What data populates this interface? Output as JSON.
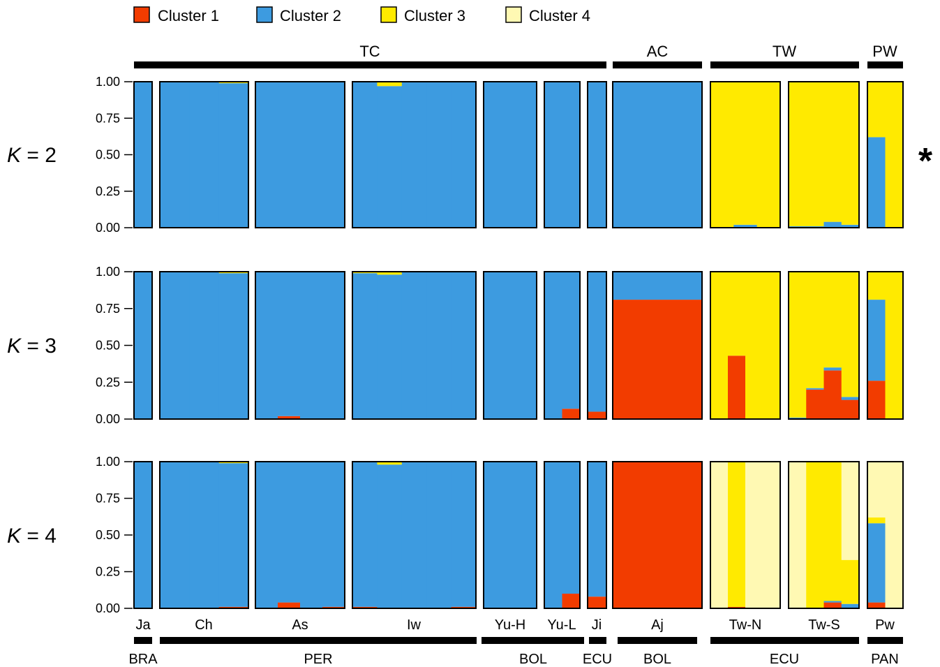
{
  "colors": {
    "cluster1": "#F23C00",
    "cluster2": "#3D9BE0",
    "cluster3": "#FFEA00",
    "cluster4": "#FFF9B3",
    "border": "#000000"
  },
  "legend": [
    "Cluster 1",
    "Cluster 2",
    "Cluster 3",
    "Cluster 4"
  ],
  "top_groups": [
    "TC",
    "AC",
    "TW",
    "PW"
  ],
  "populations": [
    "Ja",
    "Ch",
    "As",
    "Iw",
    "Yu-H",
    "Yu-L",
    "Ji",
    "Aj",
    "Tw-N",
    "Tw-S",
    "Pw"
  ],
  "countries": [
    "BRA",
    "PER",
    "BOL",
    "ECU",
    "BOL",
    "ECU",
    "PAN"
  ],
  "ticks": [
    "0.00",
    "0.25",
    "0.50",
    "0.75",
    "1.00"
  ],
  "k_label_letter": "K",
  "asterisk": "*",
  "chart_data": {
    "type": "bar",
    "subtype": "stacked-admixture",
    "ylim": [
      0,
      1
    ],
    "panels": [
      {
        "K": 2,
        "label_suffix": " = 2",
        "best": true,
        "populations": {
          "Ja": [
            [
              0,
              1,
              0,
              0
            ]
          ],
          "Ch": [
            [
              0,
              1,
              0,
              0
            ],
            [
              0,
              1,
              0,
              0
            ],
            [
              0,
              0.99,
              0.01,
              0
            ]
          ],
          "As": [
            [
              0,
              1,
              0,
              0
            ]
          ],
          "Iw": [
            [
              0,
              1,
              0,
              0
            ],
            [
              0,
              0.97,
              0.03,
              0
            ],
            [
              0,
              1,
              0,
              0
            ],
            [
              0,
              1,
              0,
              0
            ],
            [
              0,
              1,
              0,
              0
            ]
          ],
          "Yu-H": [
            [
              0,
              1,
              0,
              0
            ]
          ],
          "Yu-L": [
            [
              0,
              1,
              0,
              0
            ]
          ],
          "Ji": [
            [
              0,
              1,
              0,
              0
            ]
          ],
          "Aj": [
            [
              0,
              1,
              0,
              0
            ]
          ],
          "Tw-N": [
            [
              0,
              0,
              1,
              0
            ],
            [
              0,
              0.02,
              0.98,
              0
            ],
            [
              0,
              0,
              1,
              0
            ]
          ],
          "Tw-S": [
            [
              0,
              0.01,
              0.99,
              0
            ],
            [
              0,
              0.01,
              0.99,
              0
            ],
            [
              0,
              0.04,
              0.96,
              0
            ],
            [
              0,
              0.02,
              0.98,
              0
            ]
          ],
          "Pw": [
            [
              0,
              0.62,
              0.38,
              0
            ],
            [
              0,
              0,
              1,
              0
            ]
          ]
        }
      },
      {
        "K": 3,
        "label_suffix": " = 3",
        "best": false,
        "populations": {
          "Ja": [
            [
              0,
              1,
              0,
              0
            ]
          ],
          "Ch": [
            [
              0,
              1,
              0,
              0
            ],
            [
              0,
              1,
              0,
              0
            ],
            [
              0,
              0.99,
              0.01,
              0
            ]
          ],
          "As": [
            [
              0,
              1,
              0,
              0
            ],
            [
              0.02,
              0.98,
              0,
              0
            ],
            [
              0,
              1,
              0,
              0
            ],
            [
              0,
              1,
              0,
              0
            ]
          ],
          "Iw": [
            [
              0,
              0.99,
              0.01,
              0
            ],
            [
              0,
              0.98,
              0.02,
              0
            ],
            [
              0,
              1,
              0,
              0
            ],
            [
              0,
              1,
              0,
              0
            ],
            [
              0,
              1,
              0,
              0
            ]
          ],
          "Yu-H": [
            [
              0,
              1,
              0,
              0
            ]
          ],
          "Yu-L": [
            [
              0,
              1,
              0,
              0
            ],
            [
              0.07,
              0.93,
              0,
              0
            ]
          ],
          "Ji": [
            [
              0.05,
              0.95,
              0,
              0
            ]
          ],
          "Aj": [
            [
              0.81,
              0.19,
              0,
              0
            ]
          ],
          "Tw-N": [
            [
              0,
              0,
              1,
              0
            ],
            [
              0.43,
              0,
              0.57,
              0
            ],
            [
              0,
              0,
              1,
              0
            ],
            [
              0,
              0,
              1,
              0
            ]
          ],
          "Tw-S": [
            [
              0,
              0.01,
              0.99,
              0
            ],
            [
              0.2,
              0.01,
              0.79,
              0
            ],
            [
              0.33,
              0.02,
              0.65,
              0
            ],
            [
              0.13,
              0.02,
              0.85,
              0
            ]
          ],
          "Pw": [
            [
              0.26,
              0.55,
              0.19,
              0
            ],
            [
              0,
              0,
              1,
              0
            ]
          ]
        }
      },
      {
        "K": 4,
        "label_suffix": " = 4",
        "best": false,
        "populations": {
          "Ja": [
            [
              0,
              1,
              0,
              0
            ]
          ],
          "Ch": [
            [
              0,
              1,
              0,
              0
            ],
            [
              0,
              1,
              0,
              0
            ],
            [
              0.01,
              0.98,
              0.01,
              0
            ]
          ],
          "As": [
            [
              0,
              1,
              0,
              0
            ],
            [
              0.04,
              0.96,
              0,
              0
            ],
            [
              0,
              1,
              0,
              0
            ],
            [
              0.01,
              0.99,
              0,
              0
            ]
          ],
          "Iw": [
            [
              0.01,
              0.99,
              0,
              0
            ],
            [
              0,
              0.98,
              0.02,
              0
            ],
            [
              0,
              1,
              0,
              0
            ],
            [
              0,
              1,
              0,
              0
            ],
            [
              0.01,
              0.99,
              0,
              0
            ]
          ],
          "Yu-H": [
            [
              0,
              1,
              0,
              0
            ]
          ],
          "Yu-L": [
            [
              0,
              1,
              0,
              0
            ],
            [
              0.1,
              0.9,
              0,
              0
            ]
          ],
          "Ji": [
            [
              0.08,
              0.92,
              0,
              0
            ]
          ],
          "Aj": [
            [
              1,
              0,
              0,
              0
            ]
          ],
          "Tw-N": [
            [
              0,
              0,
              0,
              1
            ],
            [
              0.01,
              0,
              0.99,
              0
            ],
            [
              0,
              0,
              0,
              1
            ],
            [
              0,
              0,
              0,
              1
            ]
          ],
          "Tw-S": [
            [
              0,
              0,
              0,
              1
            ],
            [
              0,
              0,
              1,
              0
            ],
            [
              0.04,
              0.01,
              0.95,
              0
            ],
            [
              0,
              0.03,
              0.3,
              0.67
            ]
          ],
          "Pw": [
            [
              0.04,
              0.54,
              0.04,
              0.38
            ],
            [
              0,
              0,
              0,
              1
            ]
          ]
        }
      }
    ]
  }
}
